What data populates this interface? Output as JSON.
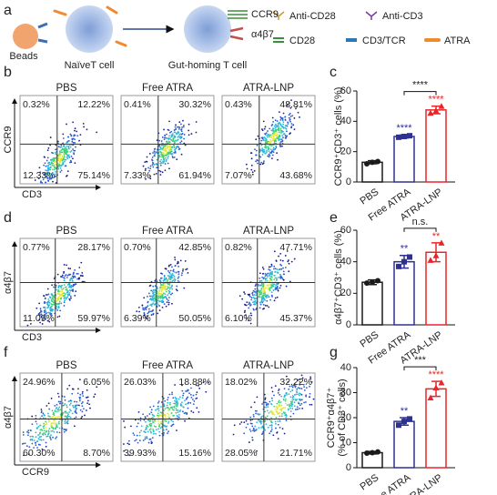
{
  "panel_letters": [
    "a",
    "b",
    "c",
    "d",
    "e",
    "f",
    "g"
  ],
  "schematic": {
    "beads": "Beads",
    "naive_cell": "NaïveT cell",
    "gut_homing_cell": "Gut-homing T cell",
    "marker_1": "CCR9",
    "marker_2": "α4β7",
    "legend": [
      "Anti-CD28",
      "Anti-CD3",
      "CD28",
      "CD3/TCR",
      "ATRA"
    ]
  },
  "flow": [
    {
      "x_label": "CD3",
      "y_label": "CCR9",
      "conditions": [
        "PBS",
        "Free ATRA",
        "ATRA-LNP"
      ],
      "quadrants": [
        [
          "0.32%",
          "12.22%",
          "12.33%",
          "75.14%"
        ],
        [
          "0.41%",
          "30.32%",
          "7.33%",
          "61.94%"
        ],
        [
          "0.43%",
          "48.81%",
          "7.07%",
          "43.68%"
        ]
      ]
    },
    {
      "x_label": "CD3",
      "y_label": "α4β7",
      "conditions": [
        "PBS",
        "Free ATRA",
        "ATRA-LNP"
      ],
      "quadrants": [
        [
          "0.77%",
          "28.17%",
          "11.09%",
          "59.97%"
        ],
        [
          "0.70%",
          "42.85%",
          "6.39%",
          "50.05%"
        ],
        [
          "0.82%",
          "47.71%",
          "6.10%",
          "45.37%"
        ]
      ]
    },
    {
      "x_label": "CCR9",
      "y_label": "α4β7",
      "conditions": [
        "PBS",
        "Free ATRA",
        "ATRA-LNP"
      ],
      "quadrants": [
        [
          "24.96%",
          "6.05%",
          "60.30%",
          "8.70%"
        ],
        [
          "26.03%",
          "18.88%",
          "39.93%",
          "15.16%"
        ],
        [
          "18.02%",
          "32.22%",
          "28.05%",
          "21.71%"
        ]
      ]
    }
  ],
  "chart_data": [
    {
      "type": "bar",
      "ylabel": "CCR9⁺CD3⁺ cells (%)",
      "categories": [
        "PBS",
        "Free ATRA",
        "ATRA-LNP"
      ],
      "values": [
        13,
        30,
        47.5
      ],
      "errors": [
        1,
        1,
        2.5
      ],
      "points": [
        [
          12,
          13,
          13.5
        ],
        [
          29.5,
          30,
          30.5
        ],
        [
          45.5,
          47,
          50
        ]
      ],
      "colors": [
        "#1a1a1a",
        "#2e3192",
        "#e8262a"
      ],
      "ylim": [
        0,
        60
      ],
      "yticks": [
        0,
        20,
        40,
        60
      ],
      "value_annotations": [
        null,
        "****",
        "****"
      ],
      "bracket_label": "****"
    },
    {
      "type": "bar",
      "ylabel": "α4β7⁺CD3⁺ cells (%)",
      "categories": [
        "PBS",
        "Free ATRA",
        "ATRA-LNP"
      ],
      "values": [
        27,
        40,
        46
      ],
      "errors": [
        1.5,
        4,
        6
      ],
      "points": [
        [
          26.5,
          27,
          28
        ],
        [
          37,
          40,
          43
        ],
        [
          41,
          44,
          52
        ]
      ],
      "colors": [
        "#1a1a1a",
        "#2e3192",
        "#e8262a"
      ],
      "ylim": [
        0,
        60
      ],
      "yticks": [
        0,
        20,
        40,
        60
      ],
      "value_annotations": [
        null,
        "**",
        "**"
      ],
      "bracket_label": "n.s."
    },
    {
      "type": "bar",
      "ylabel": [
        "CCR9⁺α4β7⁺",
        "(% of CD3⁺ cells)"
      ],
      "categories": [
        "PBS",
        "Free ATRA",
        "ATRA-LNP"
      ],
      "values": [
        6,
        18.5,
        31.5
      ],
      "errors": [
        0.5,
        1.5,
        3
      ],
      "points": [
        [
          5.8,
          6,
          6.3
        ],
        [
          17,
          18.5,
          19.5
        ],
        [
          28,
          32,
          34
        ]
      ],
      "colors": [
        "#1a1a1a",
        "#2e3192",
        "#e8262a"
      ],
      "ylim": [
        0,
        40
      ],
      "yticks": [
        0,
        10,
        20,
        30,
        40
      ],
      "value_annotations": [
        null,
        "**",
        "****"
      ],
      "bracket_label": "***"
    }
  ]
}
